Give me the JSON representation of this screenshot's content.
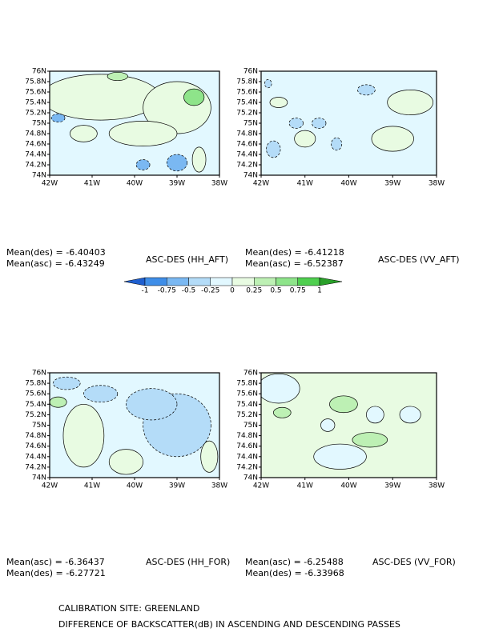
{
  "panels": [
    {
      "title": "ASC-DES (HH_AFT)",
      "stats": [
        "Mean(des) = -6.40403",
        "Mean(asc) = -6.43249"
      ]
    },
    {
      "title": "ASC-DES (VV_AFT)",
      "stats": [
        "Mean(des) = -6.41218",
        "Mean(asc) = -6.52387"
      ]
    },
    {
      "title": "ASC-DES (HH_FOR)",
      "stats": [
        "Mean(asc) = -6.36437",
        "Mean(des) = -6.27721"
      ]
    },
    {
      "title": "ASC-DES (VV_FOR)",
      "stats": [
        "Mean(asc) = -6.25488",
        "Mean(des) = -6.33968"
      ]
    }
  ],
  "map_axes": {
    "lat_labels": [
      "74N",
      "74.2N",
      "74.4N",
      "74.6N",
      "74.8N",
      "75N",
      "75.2N",
      "75.4N",
      "75.6N",
      "75.8N",
      "76N"
    ],
    "lon_labels": [
      "42W",
      "41W",
      "40W",
      "39W",
      "38W"
    ]
  },
  "colorbar": {
    "ticks": [
      -1,
      -0.75,
      -0.5,
      -0.25,
      0,
      0.25,
      0.5,
      0.75,
      1
    ],
    "colors": [
      "#1f5fcf",
      "#3f8ee8",
      "#7ab8f2",
      "#b4dcf8",
      "#e2f8ff",
      "#e8fbe2",
      "#bdf0b4",
      "#8ee48a",
      "#4fcf4f",
      "#2aa02a"
    ]
  },
  "footer": [
    "CALIBRATION SITE: GREENLAND",
    "DIFFERENCE OF BACKSCATTER(dB) IN ASCENDING AND DESCENDING PASSES"
  ]
}
